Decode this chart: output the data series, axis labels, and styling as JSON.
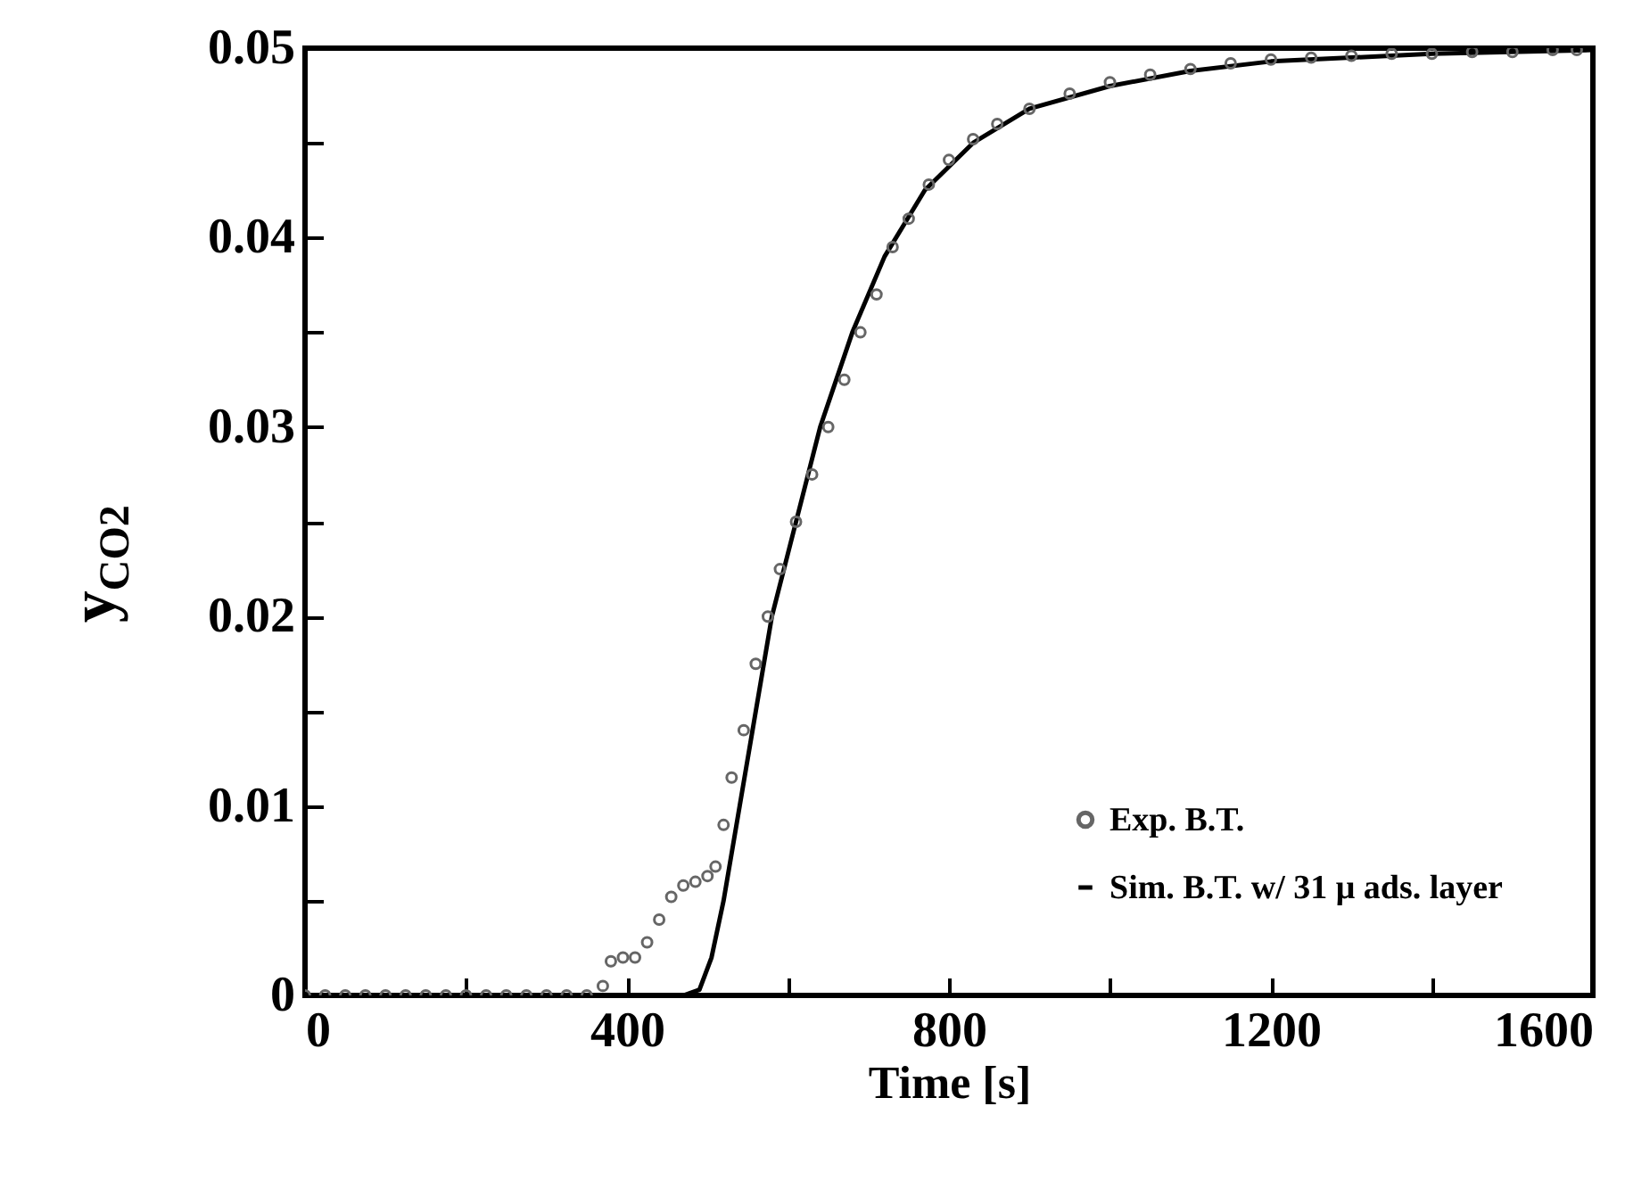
{
  "chart_data": {
    "type": "scatter",
    "xlabel": "Time [s]",
    "ylabel": "y$_{CO2}$",
    "xlim": [
      0,
      1600
    ],
    "xticks": [
      0,
      {
        "value": 200,
        "label": null
      },
      400,
      {
        "value": 600,
        "label": null
      },
      800,
      {
        "value": 1000,
        "label": null
      },
      1200,
      {
        "value": 1400,
        "label": null
      },
      1600
    ],
    "ylim": [
      0,
      0.05
    ],
    "yticks": [
      0,
      {
        "value": 0.005,
        "label": null
      },
      0.01,
      {
        "value": 0.015,
        "label": null
      },
      0.02,
      {
        "value": 0.025,
        "label": null
      },
      0.03,
      {
        "value": 0.035,
        "label": null
      },
      0.04,
      {
        "value": 0.045,
        "label": null
      },
      0.05
    ],
    "legend": "bottom right",
    "grid": false,
    "series": [
      {
        "name": "Exp. B.T.",
        "marker": "circle",
        "color": "#666666",
        "x": [
          0,
          25,
          50,
          75,
          100,
          125,
          150,
          175,
          200,
          225,
          250,
          275,
          300,
          325,
          350,
          370,
          380,
          395,
          410,
          425,
          440,
          455,
          470,
          485,
          500,
          510,
          520,
          530,
          545,
          560,
          575,
          590,
          610,
          630,
          650,
          670,
          690,
          710,
          730,
          750,
          775,
          800,
          830,
          860,
          900,
          950,
          1000,
          1050,
          1100,
          1150,
          1200,
          1250,
          1300,
          1350,
          1400,
          1450,
          1500,
          1550,
          1580
        ],
        "values": [
          0,
          0,
          0,
          0,
          0,
          0,
          0,
          0,
          0,
          0,
          0,
          0,
          0,
          0,
          0,
          0.0005,
          0.0018,
          0.002,
          0.002,
          0.0028,
          0.004,
          0.0052,
          0.0058,
          0.006,
          0.0063,
          0.0068,
          0.009,
          0.0115,
          0.014,
          0.0175,
          0.02,
          0.0225,
          0.025,
          0.0275,
          0.03,
          0.0325,
          0.035,
          0.037,
          0.0395,
          0.041,
          0.0428,
          0.0441,
          0.0452,
          0.046,
          0.0468,
          0.0476,
          0.0482,
          0.0486,
          0.0489,
          0.0492,
          0.0494,
          0.0495,
          0.0496,
          0.0497,
          0.0497,
          0.0498,
          0.0498,
          0.0499,
          0.0499
        ]
      },
      {
        "name": "Sim. B.T. w/ 31 μ ads. layer",
        "type": "line",
        "line_style": "solid",
        "color": "#000000",
        "x": [
          0,
          470,
          490,
          505,
          520,
          540,
          560,
          580,
          610,
          640,
          680,
          720,
          770,
          830,
          900,
          1000,
          1100,
          1200,
          1400,
          1600
        ],
        "values": [
          0,
          0,
          0.0003,
          0.002,
          0.005,
          0.01,
          0.015,
          0.02,
          0.025,
          0.03,
          0.035,
          0.039,
          0.0425,
          0.045,
          0.0468,
          0.048,
          0.0488,
          0.0493,
          0.0497,
          0.0499
        ]
      }
    ]
  }
}
